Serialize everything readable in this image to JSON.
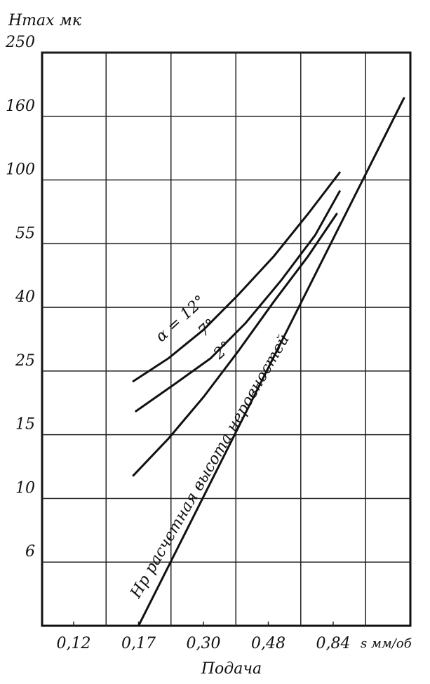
{
  "chart_data": {
    "type": "line",
    "y_label": "Hmax мк",
    "x_label": "Подача",
    "x_unit": "s мм/об",
    "xlim": [
      0.1,
      1.2
    ],
    "xticks": [
      {
        "value": 0.12,
        "label": "0,12"
      },
      {
        "value": 0.17,
        "label": "0,17"
      },
      {
        "value": 0.3,
        "label": "0,30"
      },
      {
        "value": 0.48,
        "label": "0,48"
      },
      {
        "value": 0.84,
        "label": "0,84"
      }
    ],
    "ylim": [
      4,
      250
    ],
    "yticks": [
      6,
      10,
      15,
      25,
      40,
      55,
      100,
      160,
      250
    ],
    "grid": true,
    "series": [
      {
        "name": "α = 12°",
        "color": "#111111",
        "x": [
          0.166,
          0.23,
          0.3,
          0.397,
          0.51,
          0.7,
          0.87
        ],
        "values": [
          23.4,
          28,
          34.7,
          43,
          52,
          76,
          107
        ]
      },
      {
        "name": "7°",
        "color": "#111111",
        "x": [
          0.168,
          0.245,
          0.32,
          0.417,
          0.55,
          0.74,
          0.87
        ],
        "values": [
          18.7,
          23.1,
          28,
          36.3,
          46.3,
          61,
          92
        ]
      },
      {
        "name": "2°",
        "color": "#111111",
        "x": [
          0.166,
          0.23,
          0.3,
          0.397,
          0.51,
          0.7,
          0.856
        ],
        "values": [
          11.8,
          14.7,
          20.9,
          29.7,
          41.3,
          52,
          76
        ]
      },
      {
        "name": "Нр расчетная высота неровностей",
        "color": "#111111",
        "x": [
          0.17,
          1.17
        ],
        "values": [
          4,
          185.7
        ]
      }
    ]
  }
}
